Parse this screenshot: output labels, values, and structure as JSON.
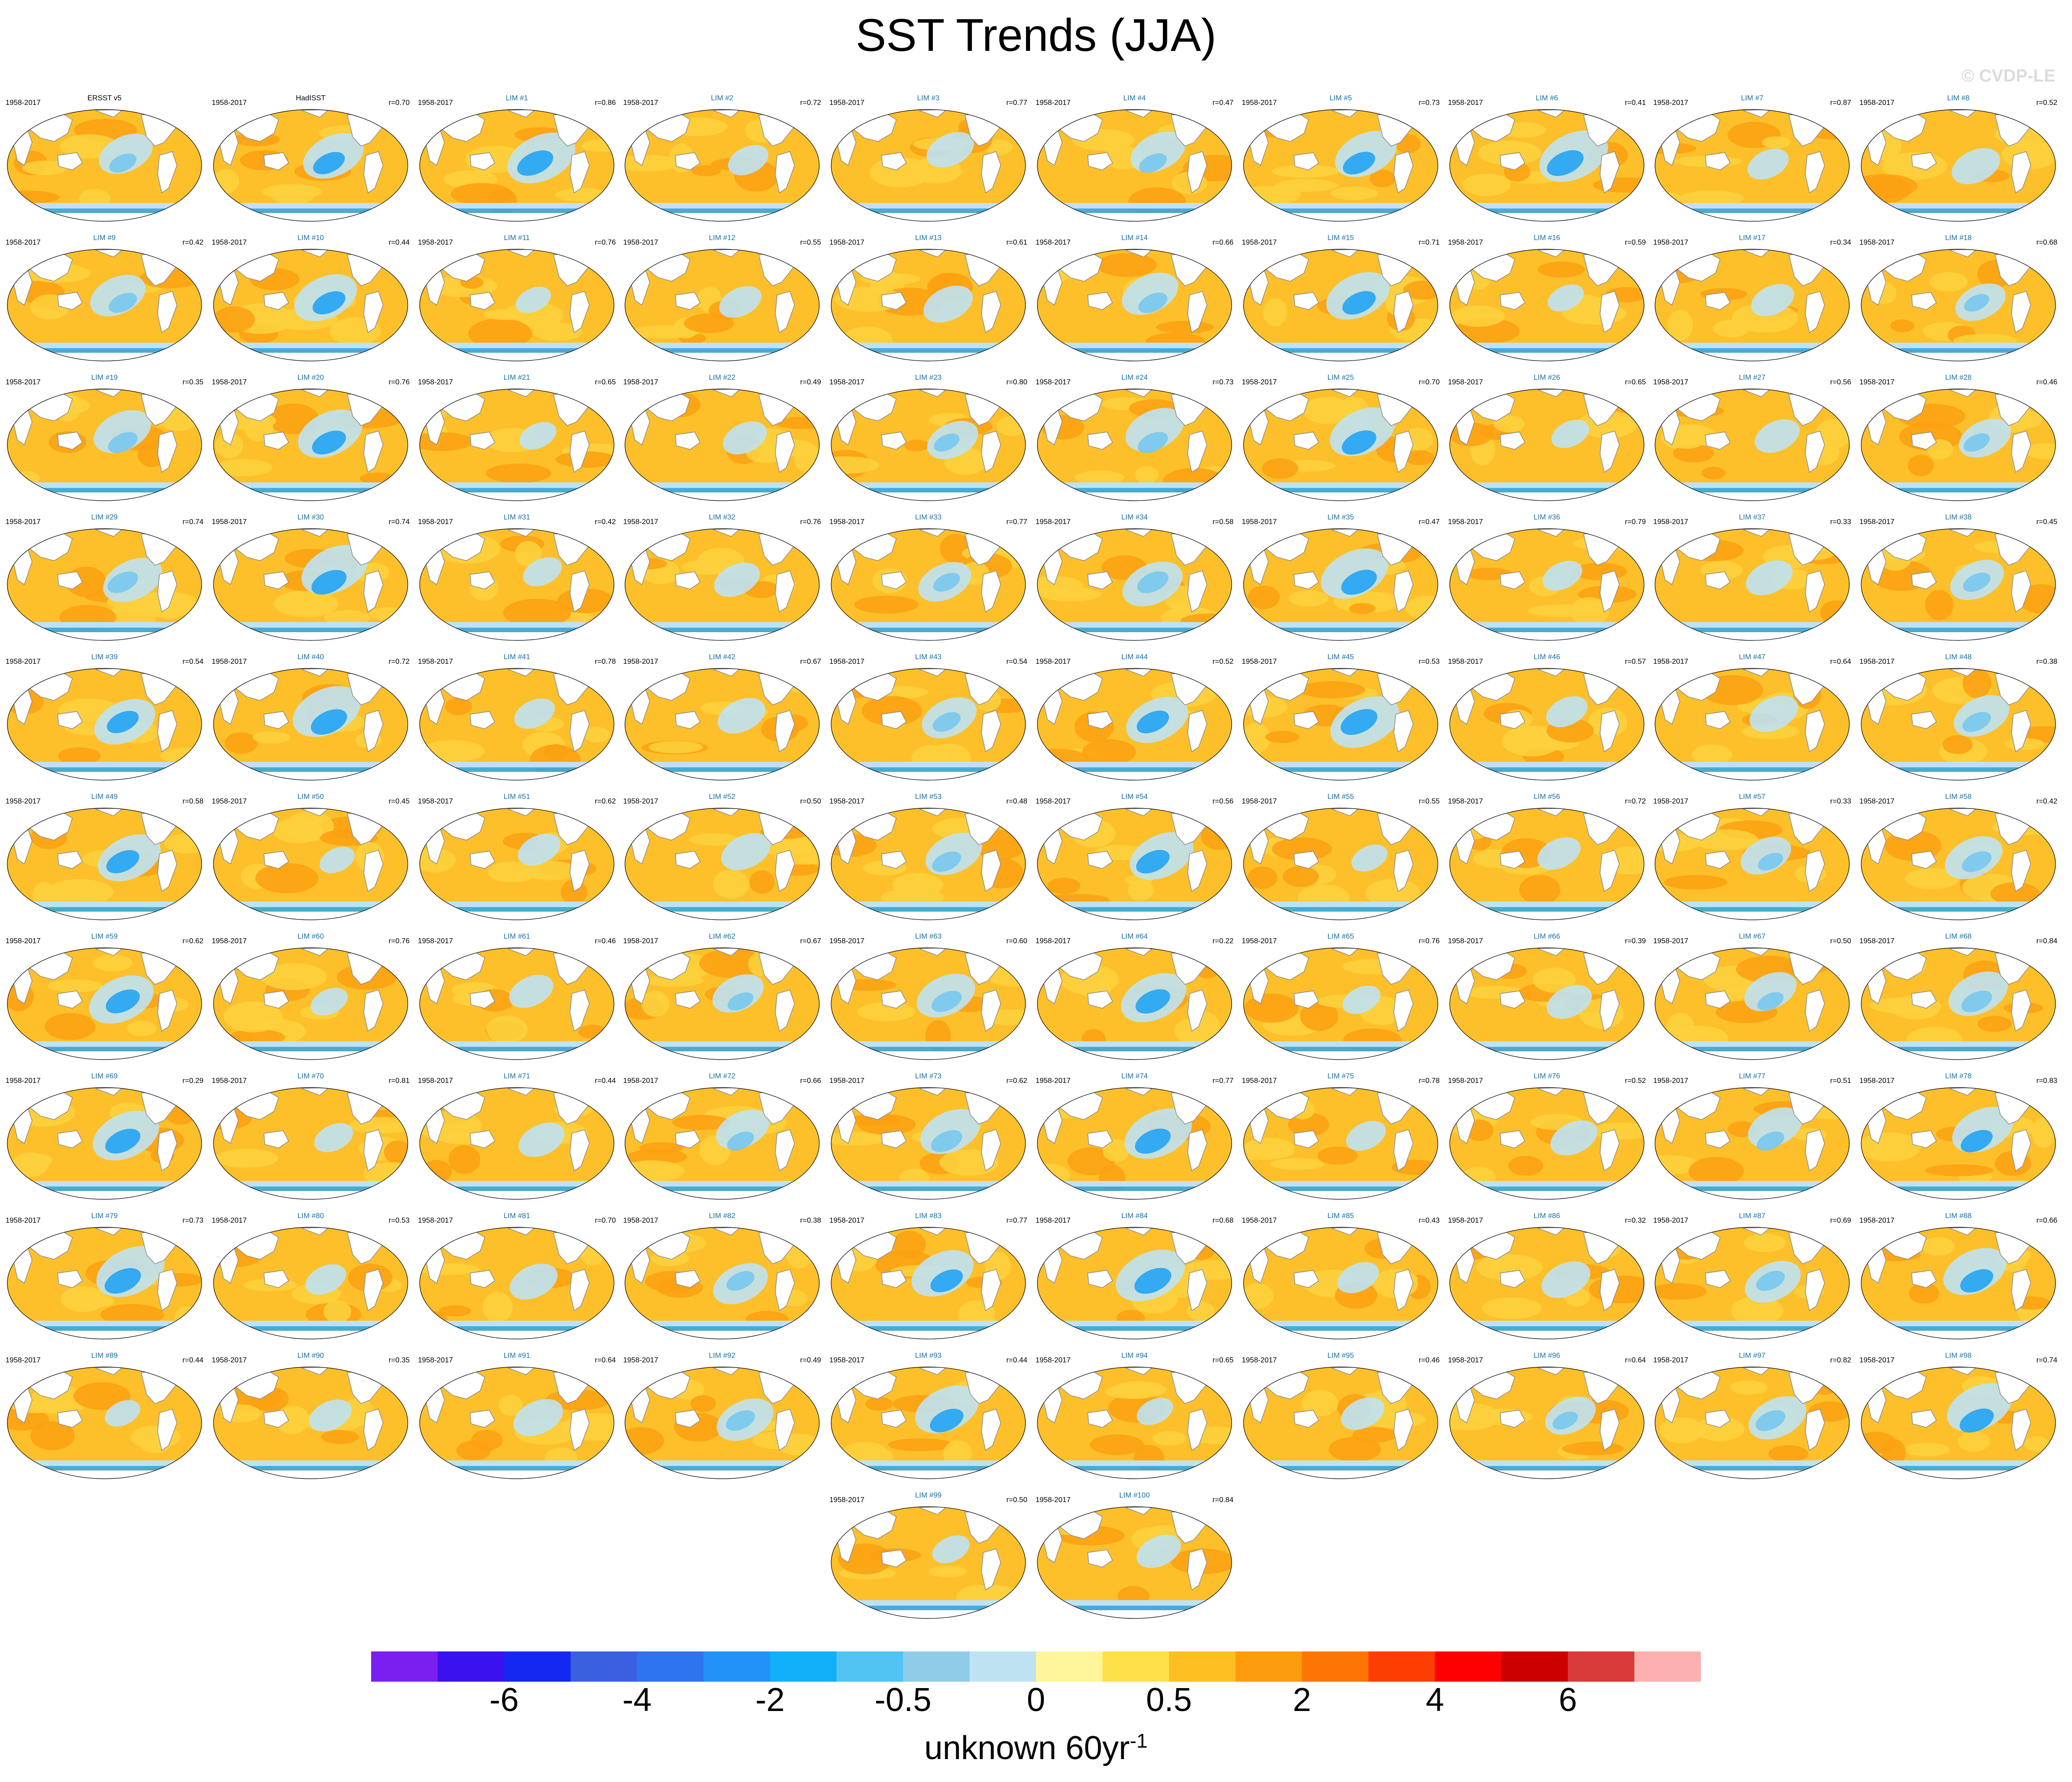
{
  "title": "SST Trends (JJA)",
  "watermark": "© CVDP-LE",
  "period": "1958-2017",
  "panels": [
    {
      "name": "ERSST v5",
      "corr": "",
      "obs": true
    },
    {
      "name": "HadISST",
      "corr": "r=0.70",
      "obs": true
    },
    {
      "name": "LIM #1",
      "corr": "r=0.86"
    },
    {
      "name": "LIM #2",
      "corr": "r=0.72"
    },
    {
      "name": "LIM #3",
      "corr": "r=0.77"
    },
    {
      "name": "LIM #4",
      "corr": "r=0.47"
    },
    {
      "name": "LIM #5",
      "corr": "r=0.73"
    },
    {
      "name": "LIM #6",
      "corr": "r=0.41"
    },
    {
      "name": "LIM #7",
      "corr": "r=0.87"
    },
    {
      "name": "LIM #8",
      "corr": "r=0.52"
    },
    {
      "name": "LIM #9",
      "corr": "r=0.42"
    },
    {
      "name": "LIM #10",
      "corr": "r=0.44"
    },
    {
      "name": "LIM #11",
      "corr": "r=0.76"
    },
    {
      "name": "LIM #12",
      "corr": "r=0.55"
    },
    {
      "name": "LIM #13",
      "corr": "r=0.61"
    },
    {
      "name": "LIM #14",
      "corr": "r=0.66"
    },
    {
      "name": "LIM #15",
      "corr": "r=0.71"
    },
    {
      "name": "LIM #16",
      "corr": "r=0.59"
    },
    {
      "name": "LIM #17",
      "corr": "r=0.34"
    },
    {
      "name": "LIM #18",
      "corr": "r=0.68"
    },
    {
      "name": "LIM #19",
      "corr": "r=0.35"
    },
    {
      "name": "LIM #20",
      "corr": "r=0.76"
    },
    {
      "name": "LIM #21",
      "corr": "r=0.65"
    },
    {
      "name": "LIM #22",
      "corr": "r=0.49"
    },
    {
      "name": "LIM #23",
      "corr": "r=0.80"
    },
    {
      "name": "LIM #24",
      "corr": "r=0.73"
    },
    {
      "name": "LIM #25",
      "corr": "r=0.70"
    },
    {
      "name": "LIM #26",
      "corr": "r=0.65"
    },
    {
      "name": "LIM #27",
      "corr": "r=0.56"
    },
    {
      "name": "LIM #28",
      "corr": "r=0.46"
    },
    {
      "name": "LIM #29",
      "corr": "r=0.74"
    },
    {
      "name": "LIM #30",
      "corr": "r=0.74"
    },
    {
      "name": "LIM #31",
      "corr": "r=0.42"
    },
    {
      "name": "LIM #32",
      "corr": "r=0.76"
    },
    {
      "name": "LIM #33",
      "corr": "r=0.77"
    },
    {
      "name": "LIM #34",
      "corr": "r=0.58"
    },
    {
      "name": "LIM #35",
      "corr": "r=0.47"
    },
    {
      "name": "LIM #36",
      "corr": "r=0.79"
    },
    {
      "name": "LIM #37",
      "corr": "r=0.33"
    },
    {
      "name": "LIM #38",
      "corr": "r=0.45"
    },
    {
      "name": "LIM #39",
      "corr": "r=0.54"
    },
    {
      "name": "LIM #40",
      "corr": "r=0.72"
    },
    {
      "name": "LIM #41",
      "corr": "r=0.78"
    },
    {
      "name": "LIM #42",
      "corr": "r=0.67"
    },
    {
      "name": "LIM #43",
      "corr": "r=0.54"
    },
    {
      "name": "LIM #44",
      "corr": "r=0.52"
    },
    {
      "name": "LIM #45",
      "corr": "r=0.53"
    },
    {
      "name": "LIM #46",
      "corr": "r=0.57"
    },
    {
      "name": "LIM #47",
      "corr": "r=0.64"
    },
    {
      "name": "LIM #48",
      "corr": "r=0.38"
    },
    {
      "name": "LIM #49",
      "corr": "r=0.58"
    },
    {
      "name": "LIM #50",
      "corr": "r=0.45"
    },
    {
      "name": "LIM #51",
      "corr": "r=0.62"
    },
    {
      "name": "LIM #52",
      "corr": "r=0.50"
    },
    {
      "name": "LIM #53",
      "corr": "r=0.48"
    },
    {
      "name": "LIM #54",
      "corr": "r=0.56"
    },
    {
      "name": "LIM #55",
      "corr": "r=0.55"
    },
    {
      "name": "LIM #56",
      "corr": "r=0.72"
    },
    {
      "name": "LIM #57",
      "corr": "r=0.33"
    },
    {
      "name": "LIM #58",
      "corr": "r=0.42"
    },
    {
      "name": "LIM #59",
      "corr": "r=0.62"
    },
    {
      "name": "LIM #60",
      "corr": "r=0.76"
    },
    {
      "name": "LIM #61",
      "corr": "r=0.46"
    },
    {
      "name": "LIM #62",
      "corr": "r=0.67"
    },
    {
      "name": "LIM #63",
      "corr": "r=0.60"
    },
    {
      "name": "LIM #64",
      "corr": "r=0.22"
    },
    {
      "name": "LIM #65",
      "corr": "r=0.76"
    },
    {
      "name": "LIM #66",
      "corr": "r=0.39"
    },
    {
      "name": "LIM #67",
      "corr": "r=0.50"
    },
    {
      "name": "LIM #68",
      "corr": "r=0.84"
    },
    {
      "name": "LIM #69",
      "corr": "r=0.29"
    },
    {
      "name": "LIM #70",
      "corr": "r=0.81"
    },
    {
      "name": "LIM #71",
      "corr": "r=0.44"
    },
    {
      "name": "LIM #72",
      "corr": "r=0.66"
    },
    {
      "name": "LIM #73",
      "corr": "r=0.62"
    },
    {
      "name": "LIM #74",
      "corr": "r=0.77"
    },
    {
      "name": "LIM #75",
      "corr": "r=0.78"
    },
    {
      "name": "LIM #76",
      "corr": "r=0.52"
    },
    {
      "name": "LIM #77",
      "corr": "r=0.51"
    },
    {
      "name": "LIM #78",
      "corr": "r=0.83"
    },
    {
      "name": "LIM #79",
      "corr": "r=0.73"
    },
    {
      "name": "LIM #80",
      "corr": "r=0.53"
    },
    {
      "name": "LIM #81",
      "corr": "r=0.70"
    },
    {
      "name": "LIM #82",
      "corr": "r=0.38"
    },
    {
      "name": "LIM #83",
      "corr": "r=0.77"
    },
    {
      "name": "LIM #84",
      "corr": "r=0.68"
    },
    {
      "name": "LIM #85",
      "corr": "r=0.43"
    },
    {
      "name": "LIM #86",
      "corr": "r=0.32"
    },
    {
      "name": "LIM #87",
      "corr": "r=0.69"
    },
    {
      "name": "LIM #88",
      "corr": "r=0.66"
    },
    {
      "name": "LIM #89",
      "corr": "r=0.44"
    },
    {
      "name": "LIM #90",
      "corr": "r=0.35"
    },
    {
      "name": "LIM #91",
      "corr": "r=0.64"
    },
    {
      "name": "LIM #92",
      "corr": "r=0.49"
    },
    {
      "name": "LIM #93",
      "corr": "r=0.44"
    },
    {
      "name": "LIM #94",
      "corr": "r=0.65"
    },
    {
      "name": "LIM #95",
      "corr": "r=0.46"
    },
    {
      "name": "LIM #96",
      "corr": "r=0.64"
    },
    {
      "name": "LIM #97",
      "corr": "r=0.82"
    },
    {
      "name": "LIM #98",
      "corr": "r=0.74"
    },
    {
      "name": "LIM #99",
      "corr": "r=0.50"
    },
    {
      "name": "LIM #100",
      "corr": "r=0.84"
    }
  ],
  "colorbar": {
    "colors": [
      "#7a1ff0",
      "#3a12f0",
      "#1428f0",
      "#3a60e0",
      "#2e74ee",
      "#2292f8",
      "#12b0f8",
      "#52c4f4",
      "#8ecce8",
      "#bfe2f2",
      "#fff59a",
      "#fde04a",
      "#fdbf22",
      "#fc9c0c",
      "#fc7505",
      "#fc3e02",
      "#ff0000",
      "#cc0000",
      "#d83a3a",
      "#fdb0b0"
    ],
    "tick_labels": [
      "-6",
      "-4",
      "-2",
      "-0.5",
      "0",
      "0.5",
      "2",
      "4",
      "6"
    ],
    "units_main": "unknown 60yr",
    "units_sup": "-1"
  },
  "map_colors": {
    "ocean_warm": "#fdc02a",
    "ocean_mid": "#fbd13e",
    "warm_strong": "#fca012",
    "cool_light": "#bfe2f2",
    "cool_mid": "#78c8f0",
    "cool_strong": "#22a4f4",
    "land": "#ffffff",
    "coast": "#888888"
  }
}
